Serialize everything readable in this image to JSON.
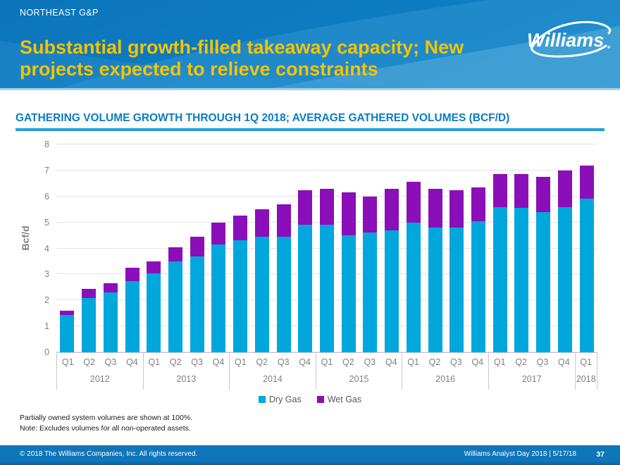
{
  "header": {
    "kicker": "NORTHEAST G&P",
    "title_line1": "Substantial growth-filled takeaway capacity; New",
    "title_line2": "projects expected to relieve constraints",
    "title_color": "#F5C400",
    "background_color": "#0E7DC2",
    "logo_text": "Williams"
  },
  "section": {
    "title": "GATHERING VOLUME GROWTH THROUGH 1Q 2018; AVERAGE GATHERED VOLUMES (BCF/D)",
    "title_color": "#0C7BC0",
    "underline_color": "#21A0DC"
  },
  "chart_data": {
    "type": "bar",
    "stacked": true,
    "title": "GATHERING VOLUME GROWTH THROUGH 1Q 2018; AVERAGE GATHERED VOLUMES (BCF/D)",
    "xlabel": "",
    "ylabel": "Bcf/d",
    "ylim": [
      0,
      8
    ],
    "yticks": [
      0,
      1,
      2,
      3,
      4,
      5,
      6,
      7,
      8
    ],
    "grid": true,
    "legend_position": "bottom",
    "groups": [
      {
        "year": "2012",
        "quarters": [
          "Q1",
          "Q2",
          "Q3",
          "Q4"
        ]
      },
      {
        "year": "2013",
        "quarters": [
          "Q1",
          "Q2",
          "Q3",
          "Q4"
        ]
      },
      {
        "year": "2014",
        "quarters": [
          "Q1",
          "Q2",
          "Q3",
          "Q4"
        ]
      },
      {
        "year": "2015",
        "quarters": [
          "Q1",
          "Q2",
          "Q3",
          "Q4"
        ]
      },
      {
        "year": "2016",
        "quarters": [
          "Q1",
          "Q2",
          "Q3",
          "Q4"
        ]
      },
      {
        "year": "2017",
        "quarters": [
          "Q1",
          "Q2",
          "Q3",
          "Q4"
        ]
      },
      {
        "year": "2018",
        "quarters": [
          "Q1"
        ]
      }
    ],
    "series": [
      {
        "name": "Dry Gas",
        "color": "#00A7DC",
        "values": [
          1.45,
          2.1,
          2.3,
          2.75,
          3.05,
          3.5,
          3.7,
          4.15,
          4.3,
          4.45,
          4.45,
          4.9,
          4.9,
          4.5,
          4.6,
          4.7,
          5.0,
          4.8,
          4.8,
          5.05,
          5.6,
          5.55,
          5.4,
          5.6,
          5.9
        ]
      },
      {
        "name": "Wet Gas",
        "color": "#8A0FB8",
        "values": [
          0.15,
          0.35,
          0.35,
          0.5,
          0.45,
          0.55,
          0.75,
          0.85,
          0.95,
          1.05,
          1.25,
          1.35,
          1.4,
          1.65,
          1.4,
          1.6,
          1.55,
          1.5,
          1.45,
          1.3,
          1.25,
          1.3,
          1.35,
          1.4,
          1.3
        ]
      }
    ]
  },
  "footnotes": {
    "line1": "Partially owned system volumes are shown at 100%.",
    "line2": "Note: Excludes volumes for all non-operated assets."
  },
  "footer": {
    "copyright": "© 2018 The Williams Companies, Inc. All rights reserved.",
    "event_and_date": "Williams Analyst Day 2018  |  5/17/18",
    "page_number": "37"
  }
}
